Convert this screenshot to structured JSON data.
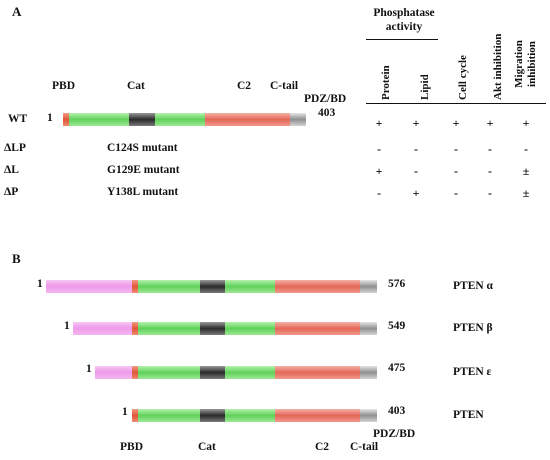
{
  "panel_a": {
    "letter": "A",
    "domains": {
      "pbd": "PBD",
      "cat": "Cat",
      "c2": "C2",
      "ctail": "C-tail",
      "pdz": "PDZ/BD"
    },
    "wt": {
      "label": "WT",
      "start": "1",
      "end": "403"
    },
    "columns": {
      "phosphatase": "Phosphatase activity",
      "protein": "Protein",
      "lipid": "Lipid",
      "cell_cycle": "Cell cycle",
      "akt": "Akt inhibition",
      "migration": "Migration inhibition"
    },
    "rows": [
      {
        "label": "WT",
        "mutant": "",
        "values": [
          "+",
          "+",
          "+",
          "+",
          "+"
        ]
      },
      {
        "label": "ΔLP",
        "mutant": "C124S mutant",
        "values": [
          "-",
          "-",
          "-",
          "-",
          "-"
        ]
      },
      {
        "label": "ΔL",
        "mutant": "G129E mutant",
        "values": [
          "+",
          "-",
          "-",
          "-",
          "±"
        ]
      },
      {
        "label": "ΔP",
        "mutant": "Y138L mutant",
        "values": [
          "-",
          "+",
          "-",
          "-",
          "±"
        ]
      }
    ]
  },
  "panel_b": {
    "letter": "B",
    "isoforms": [
      {
        "name": "PTEN α",
        "start": "1",
        "end": "576"
      },
      {
        "name": "PTEN β",
        "start": "1",
        "end": "549"
      },
      {
        "name": "PTEN ε",
        "start": "1",
        "end": "475"
      },
      {
        "name": "PTEN",
        "start": "1",
        "end": "403"
      }
    ],
    "domains": {
      "pbd": "PBD",
      "cat": "Cat",
      "c2": "C2",
      "ctail": "C-tail",
      "pdz": "PDZ/BD"
    }
  }
}
